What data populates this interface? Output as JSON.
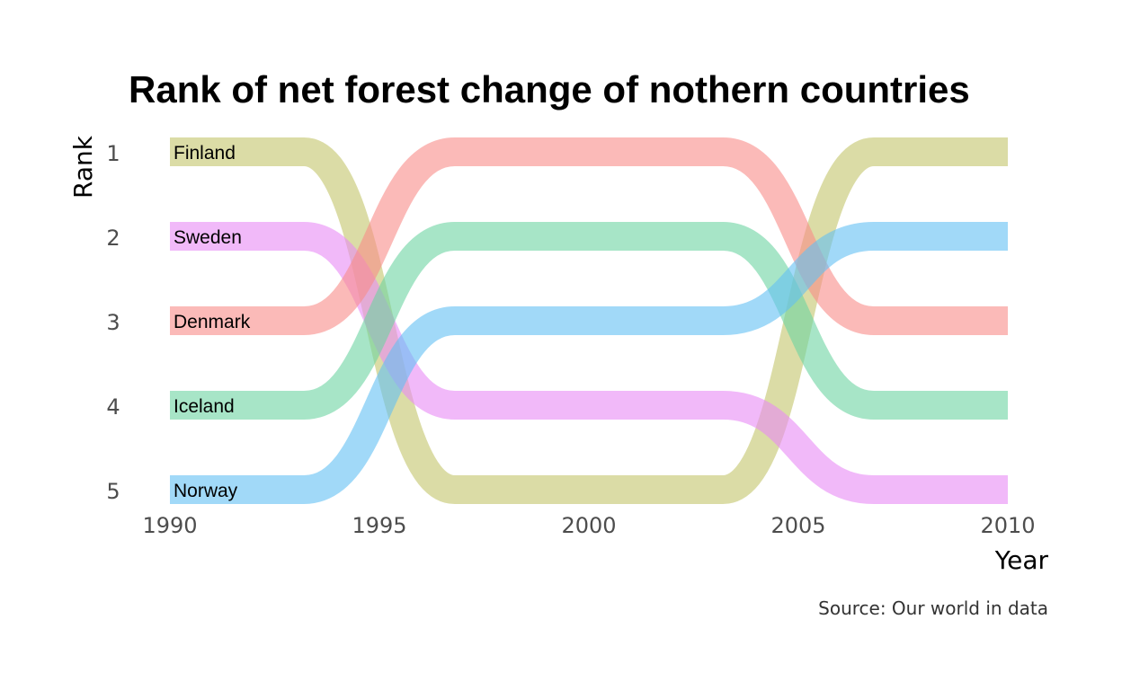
{
  "chart_data": {
    "type": "line",
    "subtype": "bump",
    "title": "Rank of net forest change of nothern countries",
    "xlabel": "Year",
    "ylabel": "Rank",
    "caption": "Source: Our world in data",
    "x": [
      1990,
      2000,
      2010
    ],
    "xticks": [
      "1990",
      "1995",
      "2000",
      "2005",
      "2010"
    ],
    "yticks": [
      "1",
      "2",
      "3",
      "4",
      "5"
    ],
    "xlim": [
      1990,
      2010
    ],
    "ylim": [
      1,
      5
    ],
    "y_reversed": true,
    "grid": false,
    "legend": "direct-labels-left",
    "series": [
      {
        "name": "Finland",
        "color": "#c3c46b",
        "values": [
          1,
          5,
          1
        ]
      },
      {
        "name": "Sweden",
        "color": "#e88af5",
        "values": [
          2,
          4,
          5
        ]
      },
      {
        "name": "Denmark",
        "color": "#f88c88",
        "values": [
          3,
          1,
          3
        ]
      },
      {
        "name": "Iceland",
        "color": "#6dd4a2",
        "values": [
          4,
          2,
          4
        ]
      },
      {
        "name": "Norway",
        "color": "#62bff3",
        "values": [
          5,
          3,
          2
        ]
      }
    ]
  }
}
